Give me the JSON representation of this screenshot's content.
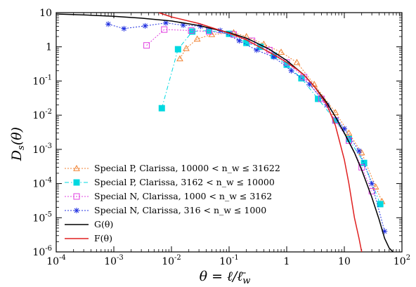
{
  "chart_data": {
    "type": "line",
    "xlabel": "θ = ℓ/ℓ̄_w",
    "ylabel": "D_s(θ)",
    "xscale": "log",
    "yscale": "log",
    "xlim": [
      0.0001,
      100
    ],
    "ylim": [
      1e-06,
      10
    ],
    "x_ticks": [
      0.0001,
      0.001,
      0.01,
      0.1,
      1,
      10,
      100
    ],
    "x_tick_labels": [
      "10^-4",
      "10^-3",
      "10^-2",
      "10^-1",
      "1",
      "10",
      "10^2"
    ],
    "y_ticks": [
      1e-06,
      1e-05,
      0.0001,
      0.001,
      0.01,
      0.1,
      1,
      10
    ],
    "y_tick_labels": [
      "10^-6",
      "10^-5",
      "10^-4",
      "10^-3",
      "10^-2",
      "10^-1",
      "1",
      "10"
    ],
    "grid": false,
    "legend_position": "bottom-left",
    "series": [
      {
        "name": "Special P, Clarissa, 10000 < n_w ≤ 31622",
        "color": "#f08030",
        "marker": "triangle-open",
        "line": "dotted",
        "x": [
          0.014,
          0.018,
          0.028,
          0.05,
          0.12,
          0.2,
          0.4,
          0.8,
          1.5,
          3,
          7,
          12,
          20,
          35,
          45
        ],
        "y": [
          0.45,
          0.9,
          1.7,
          2.3,
          2.6,
          2.0,
          1.2,
          0.7,
          0.35,
          0.08,
          0.012,
          0.003,
          0.0008,
          8e-05,
          3e-05
        ]
      },
      {
        "name": "Special P, Clarissa, 3162 < n_w ≤ 10000",
        "color": "#00d8e0",
        "marker": "square-filled",
        "line": "dash-dot",
        "x": [
          0.0068,
          0.013,
          0.023,
          0.045,
          0.1,
          0.2,
          0.35,
          0.6,
          1.0,
          1.8,
          3.5,
          7,
          12,
          22,
          42
        ],
        "y": [
          0.016,
          0.85,
          2.8,
          3.0,
          2.4,
          1.3,
          1.0,
          0.55,
          0.3,
          0.12,
          0.03,
          0.007,
          0.002,
          0.0004,
          2.5e-05
        ]
      },
      {
        "name": "Special N, Clarissa, 1000 < n_w ≤ 3162",
        "color": "#e040e0",
        "marker": "square-open",
        "line": "dotted",
        "x": [
          0.0037,
          0.0075,
          0.022,
          0.045,
          0.12,
          0.25,
          0.5,
          1.0,
          2.0,
          4.0,
          7,
          12,
          20,
          30
        ],
        "y": [
          1.1,
          3.2,
          3.0,
          2.8,
          2.3,
          1.5,
          0.8,
          0.35,
          0.13,
          0.03,
          0.007,
          0.0018,
          0.0003,
          6e-05
        ]
      },
      {
        "name": "Special N, Clarissa, 316 < n_w ≤ 1000",
        "color": "#2030e0",
        "marker": "asterisk",
        "line": "dotted",
        "x": [
          0.0008,
          0.0015,
          0.0035,
          0.008,
          0.016,
          0.032,
          0.07,
          0.15,
          0.3,
          0.6,
          1.2,
          2.5,
          5,
          10,
          18,
          30,
          50
        ],
        "y": [
          4.6,
          3.4,
          4.1,
          5.0,
          4.3,
          4.0,
          3.0,
          1.5,
          0.8,
          0.5,
          0.2,
          0.08,
          0.02,
          0.004,
          0.0009,
          0.0001,
          4e-06
        ]
      },
      {
        "name": "G(θ)",
        "color": "#000000",
        "marker": "none",
        "line": "solid",
        "x": [
          0.0001,
          0.0003,
          0.001,
          0.003,
          0.01,
          0.03,
          0.1,
          0.2,
          0.3,
          0.5,
          1,
          2,
          3,
          5,
          7,
          10,
          15,
          20,
          30,
          40,
          50,
          60,
          70
        ],
        "y": [
          9.1,
          8.6,
          7.8,
          6.9,
          5.7,
          4.2,
          2.6,
          1.8,
          1.3,
          0.85,
          0.4,
          0.15,
          0.07,
          0.023,
          0.009,
          0.003,
          0.0008,
          0.00025,
          4e-05,
          9e-06,
          2.5e-06,
          1.3e-06,
          1e-06
        ]
      },
      {
        "name": "F(θ)",
        "color": "#e02020",
        "marker": "none",
        "line": "solid",
        "x": [
          0.006,
          0.01,
          0.03,
          0.1,
          0.2,
          0.3,
          0.5,
          1,
          1.5,
          2,
          3,
          5,
          7,
          10,
          12,
          15,
          18,
          20
        ],
        "y": [
          10,
          7.5,
          4.8,
          2.5,
          1.6,
          1.1,
          0.7,
          0.35,
          0.22,
          0.15,
          0.07,
          0.02,
          0.005,
          0.0005,
          0.0001,
          1e-05,
          2.5e-06,
          1e-06
        ]
      }
    ]
  }
}
